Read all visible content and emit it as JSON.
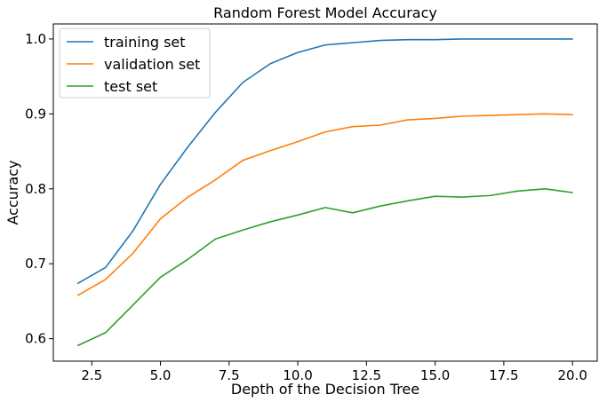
{
  "chart_data": {
    "type": "line",
    "title": "Random Forest Model Accuracy",
    "xlabel": "Depth of the Decision Tree",
    "ylabel": "Accuracy",
    "xlim": [
      1.1,
      20.9
    ],
    "ylim": [
      0.57,
      1.02
    ],
    "xticks": [
      2.5,
      5.0,
      7.5,
      10.0,
      12.5,
      15.0,
      17.5,
      20.0
    ],
    "xtick_labels": [
      "2.5",
      "5.0",
      "7.5",
      "10.0",
      "12.5",
      "15.0",
      "17.5",
      "20.0"
    ],
    "yticks": [
      0.6,
      0.7,
      0.8,
      0.9,
      1.0
    ],
    "ytick_labels": [
      "0.6",
      "0.7",
      "0.8",
      "0.9",
      "1.0"
    ],
    "grid": false,
    "legend_position": "top-left",
    "x": [
      2,
      3,
      4,
      5,
      6,
      7,
      8,
      9,
      10,
      11,
      12,
      13,
      14,
      15,
      16,
      17,
      18,
      19,
      20
    ],
    "series": [
      {
        "name": "training set",
        "color": "#1f77b4",
        "values": [
          0.674,
          0.695,
          0.744,
          0.806,
          0.856,
          0.902,
          0.942,
          0.967,
          0.982,
          0.992,
          0.995,
          0.998,
          0.999,
          0.999,
          1.0,
          1.0,
          1.0,
          1.0,
          1.0
        ]
      },
      {
        "name": "validation set",
        "color": "#ff7f0e",
        "values": [
          0.658,
          0.679,
          0.714,
          0.76,
          0.789,
          0.812,
          0.838,
          0.851,
          0.863,
          0.876,
          0.883,
          0.885,
          0.892,
          0.894,
          0.897,
          0.898,
          0.899,
          0.9,
          0.899
        ]
      },
      {
        "name": "test set",
        "color": "#2ca02c",
        "values": [
          0.591,
          0.608,
          0.645,
          0.682,
          0.706,
          0.733,
          0.745,
          0.756,
          0.765,
          0.775,
          0.768,
          0.777,
          0.784,
          0.79,
          0.789,
          0.791,
          0.797,
          0.8,
          0.795
        ]
      }
    ]
  }
}
